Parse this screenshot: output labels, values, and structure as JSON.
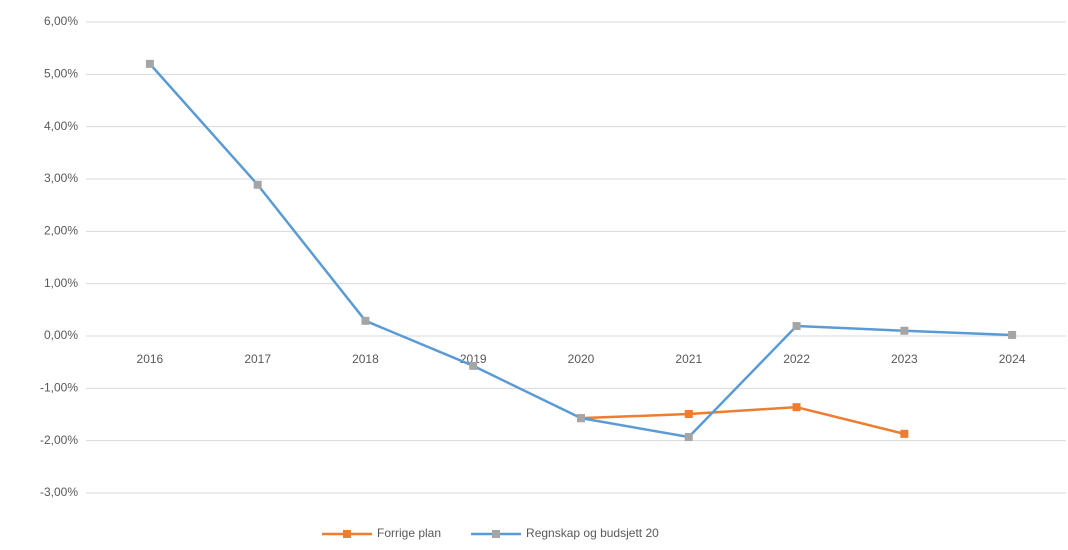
{
  "chart_data": {
    "type": "line",
    "categories": [
      "2016",
      "2017",
      "2018",
      "2019",
      "2020",
      "2021",
      "2022",
      "2023",
      "2024"
    ],
    "series": [
      {
        "name": "Forrige plan",
        "color": "#ed7d31",
        "marker_color": "#ed7d31",
        "values": [
          null,
          null,
          null,
          null,
          -1.57,
          -1.49,
          -1.36,
          -1.87,
          null
        ]
      },
      {
        "name": "Regnskap og budsjett 20",
        "color": "#5b9bd5",
        "marker_color": "#a5a5a5",
        "values": [
          5.2,
          2.89,
          0.29,
          -0.57,
          -1.57,
          -1.93,
          0.19,
          0.1,
          0.02
        ]
      }
    ],
    "ylim": [
      -3,
      6
    ],
    "yticks": [
      {
        "value": -3,
        "label": "-3,00%"
      },
      {
        "value": -2,
        "label": "-2,00%"
      },
      {
        "value": -1,
        "label": "-1,00%"
      },
      {
        "value": 0,
        "label": "0,00%"
      },
      {
        "value": 1,
        "label": "1,00%"
      },
      {
        "value": 2,
        "label": "2,00%"
      },
      {
        "value": 3,
        "label": "3,00%"
      },
      {
        "value": 4,
        "label": "4,00%"
      },
      {
        "value": 5,
        "label": "5,00%"
      },
      {
        "value": 6,
        "label": "6,00%"
      }
    ],
    "grid": true,
    "legend": "bottom"
  }
}
